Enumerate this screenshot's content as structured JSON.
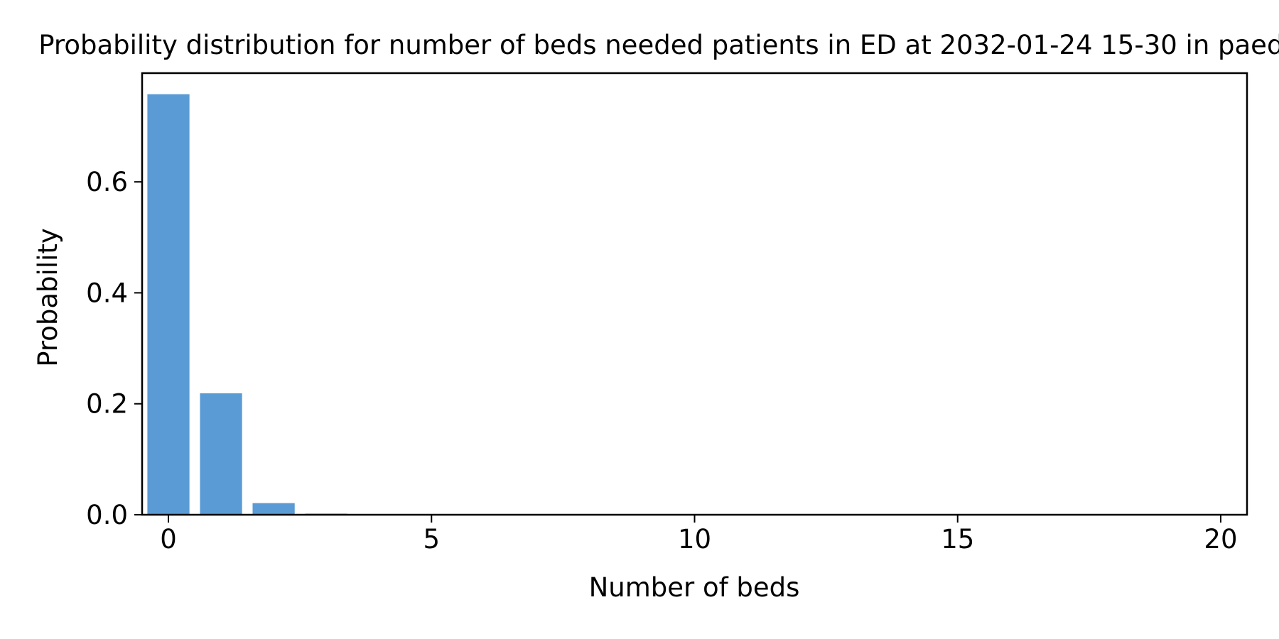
{
  "chart_data": {
    "type": "bar",
    "title": "Probability distribution for number of beds needed patients in ED at 2032-01-24 15-30 in paediatric",
    "xlabel": "Number of beds",
    "ylabel": "Probability",
    "x": [
      0,
      1,
      2,
      3,
      4,
      5,
      6,
      7,
      8,
      9,
      10,
      11,
      12,
      13,
      14,
      15,
      16,
      17,
      18,
      19,
      20
    ],
    "values": [
      0.758,
      0.219,
      0.021,
      0.002,
      0,
      0,
      0,
      0,
      0,
      0,
      0,
      0,
      0,
      0,
      0,
      0,
      0,
      0,
      0,
      0,
      0
    ],
    "xlim": [
      -0.5,
      20.5
    ],
    "ylim": [
      0,
      0.796
    ],
    "xticks": [
      0,
      5,
      10,
      15,
      20
    ],
    "xtick_labels": [
      "0",
      "5",
      "10",
      "15",
      "20"
    ],
    "yticks": [
      0.0,
      0.2,
      0.4,
      0.6
    ],
    "ytick_labels": [
      "0.0",
      "0.2",
      "0.4",
      "0.6"
    ],
    "bar_color": "#5b9bd5",
    "grid": false,
    "legend": "none"
  }
}
